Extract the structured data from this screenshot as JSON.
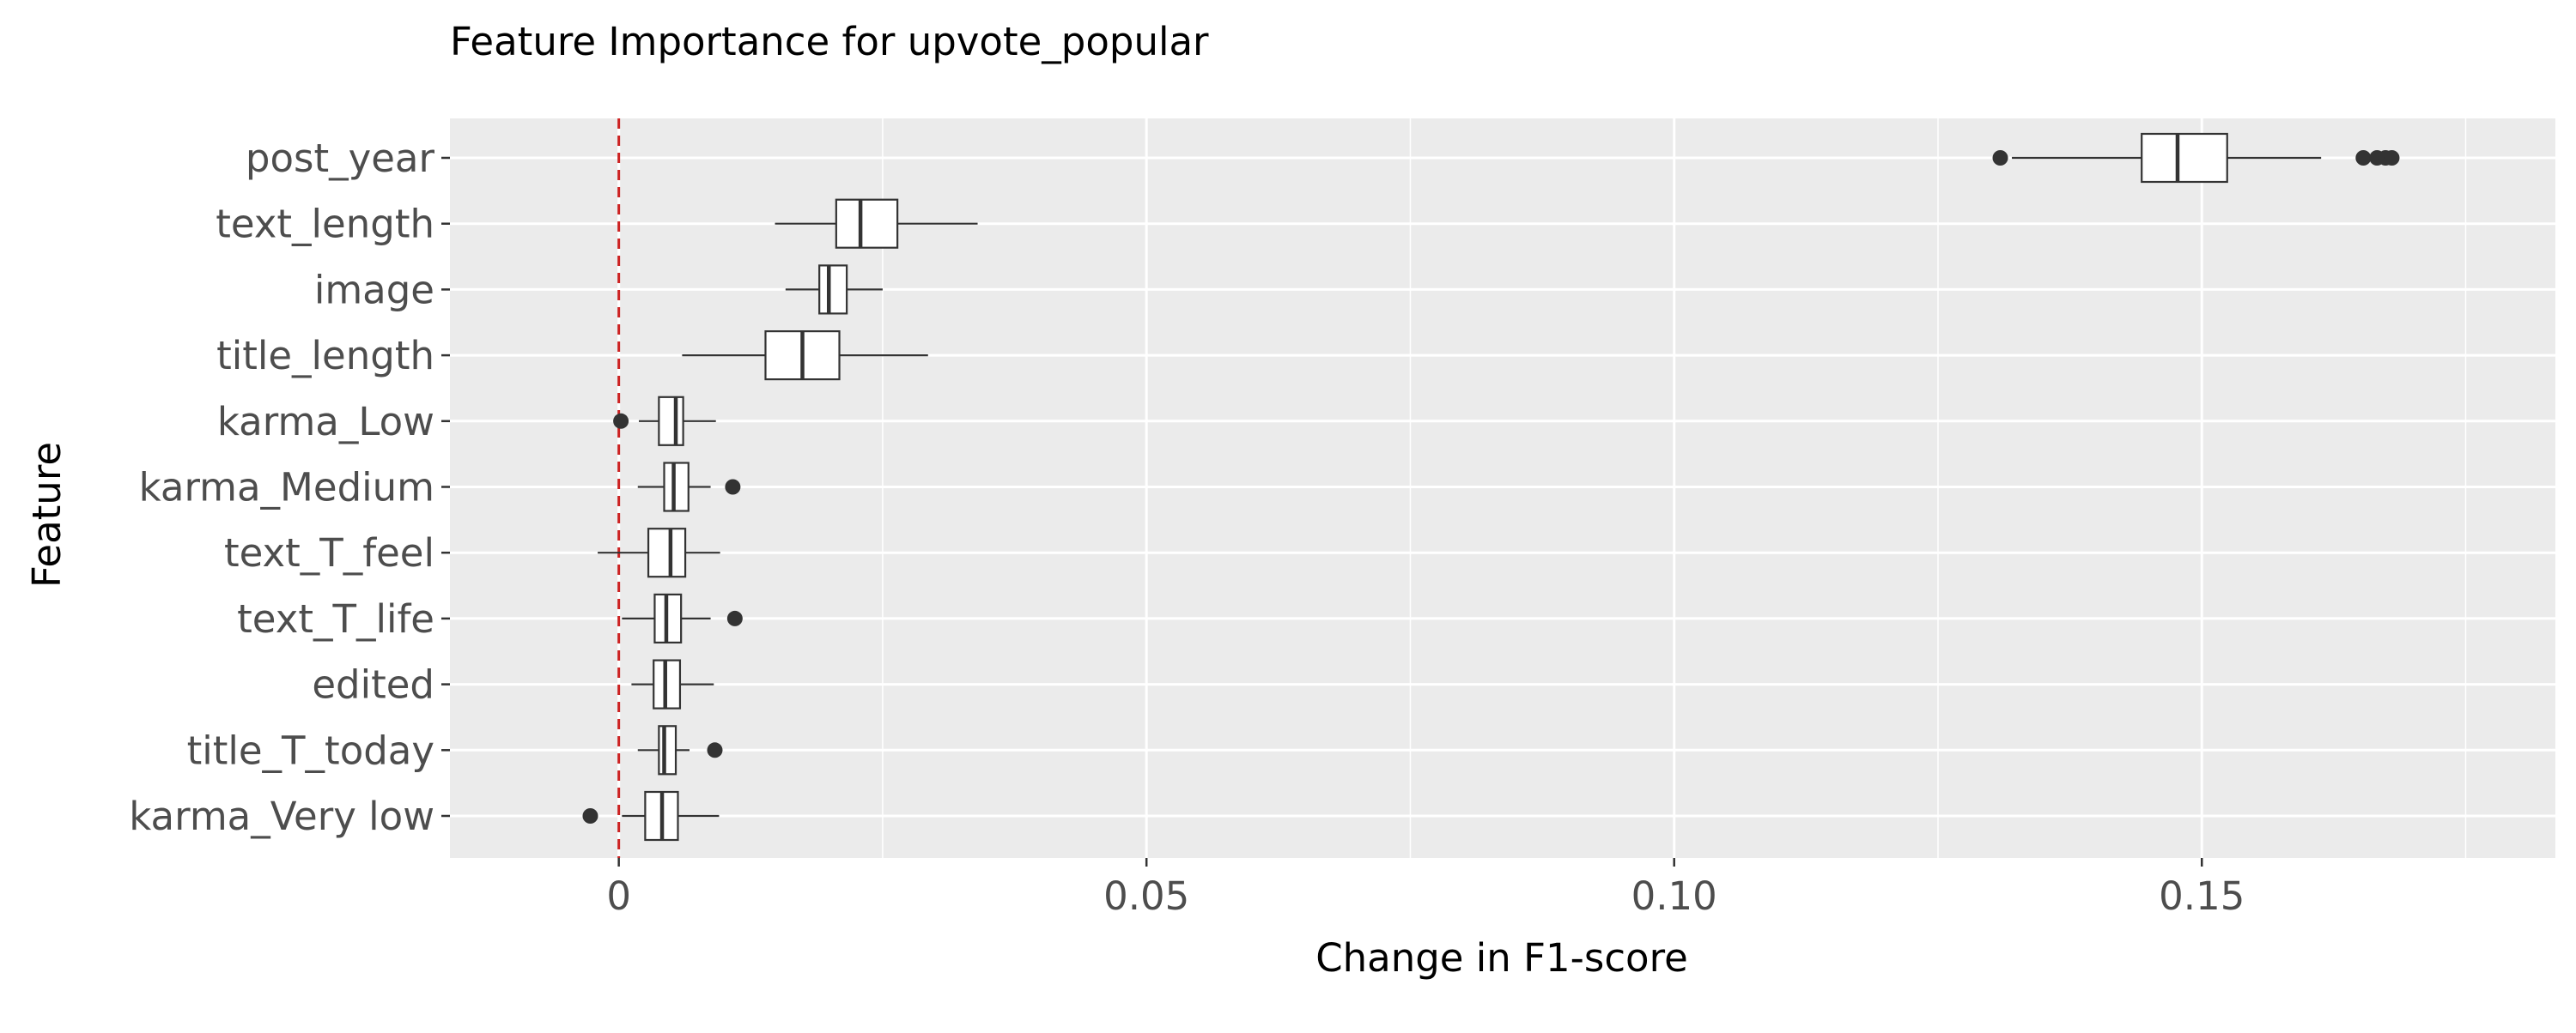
{
  "chart_data": {
    "type": "boxplot",
    "orientation": "horizontal",
    "title": "Feature Importance for upvote_popular",
    "xlabel": "Change in F1-score",
    "ylabel": "Feature",
    "xlim": [
      -0.016,
      0.1835
    ],
    "x_ticks": [
      {
        "value": 0,
        "label": "0"
      },
      {
        "value": 0.05,
        "label": "0.05"
      },
      {
        "value": 0.1,
        "label": "0.10"
      },
      {
        "value": 0.15,
        "label": "0.15"
      }
    ],
    "x_minor_ticks": [
      0.025,
      0.075,
      0.125,
      0.175
    ],
    "reference_line": {
      "value": 0,
      "style": "dashed",
      "color": "#cc2222"
    },
    "grid": true,
    "colors": {
      "panel": "#ebebeb",
      "grid": "#ffffff",
      "box_fill": "#ffffff",
      "box_stroke": "#333333",
      "outlier": "#333333",
      "reference": "#cc2222"
    },
    "categories": [
      "post_year",
      "text_length",
      "image",
      "title_length",
      "karma_Low",
      "karma_Medium",
      "text_T_feel",
      "text_T_life",
      "edited",
      "title_T_today",
      "karma_Very low"
    ],
    "boxes": [
      {
        "label": "post_year",
        "whisker_low": 0.132,
        "q1": 0.1443,
        "median": 0.1477,
        "q3": 0.1524,
        "whisker_high": 0.1613,
        "outliers": [
          0.1309,
          0.1653,
          0.1666,
          0.1674,
          0.168
        ]
      },
      {
        "label": "text_length",
        "whisker_low": 0.0148,
        "q1": 0.0206,
        "median": 0.0229,
        "q3": 0.0264,
        "whisker_high": 0.034,
        "outliers": []
      },
      {
        "label": "image",
        "whisker_low": 0.0158,
        "q1": 0.019,
        "median": 0.0199,
        "q3": 0.0216,
        "whisker_high": 0.025,
        "outliers": []
      },
      {
        "label": "title_length",
        "whisker_low": 0.006,
        "q1": 0.0139,
        "median": 0.0174,
        "q3": 0.0209,
        "whisker_high": 0.0293,
        "outliers": []
      },
      {
        "label": "karma_Low",
        "whisker_low": 0.0019,
        "q1": 0.0038,
        "median": 0.0054,
        "q3": 0.0061,
        "whisker_high": 0.0092,
        "outliers": [
          0.0002
        ]
      },
      {
        "label": "karma_Medium",
        "whisker_low": 0.0018,
        "q1": 0.0043,
        "median": 0.0052,
        "q3": 0.0066,
        "whisker_high": 0.0087,
        "outliers": [
          0.0108
        ]
      },
      {
        "label": "text_T_feel",
        "whisker_low": -0.002,
        "q1": 0.0028,
        "median": 0.0049,
        "q3": 0.0063,
        "whisker_high": 0.0096,
        "outliers": []
      },
      {
        "label": "text_T_life",
        "whisker_low": 0.0003,
        "q1": 0.0034,
        "median": 0.0045,
        "q3": 0.0059,
        "whisker_high": 0.0087,
        "outliers": [
          0.011
        ]
      },
      {
        "label": "edited",
        "whisker_low": 0.0012,
        "q1": 0.0033,
        "median": 0.0044,
        "q3": 0.0058,
        "whisker_high": 0.009,
        "outliers": []
      },
      {
        "label": "title_T_today",
        "whisker_low": 0.0018,
        "q1": 0.0038,
        "median": 0.0043,
        "q3": 0.0054,
        "whisker_high": 0.0067,
        "outliers": [
          0.0091
        ]
      },
      {
        "label": "karma_Very low",
        "whisker_low": 0.0003,
        "q1": 0.0025,
        "median": 0.0041,
        "q3": 0.0056,
        "whisker_high": 0.0095,
        "outliers": [
          -0.0027
        ]
      }
    ]
  }
}
